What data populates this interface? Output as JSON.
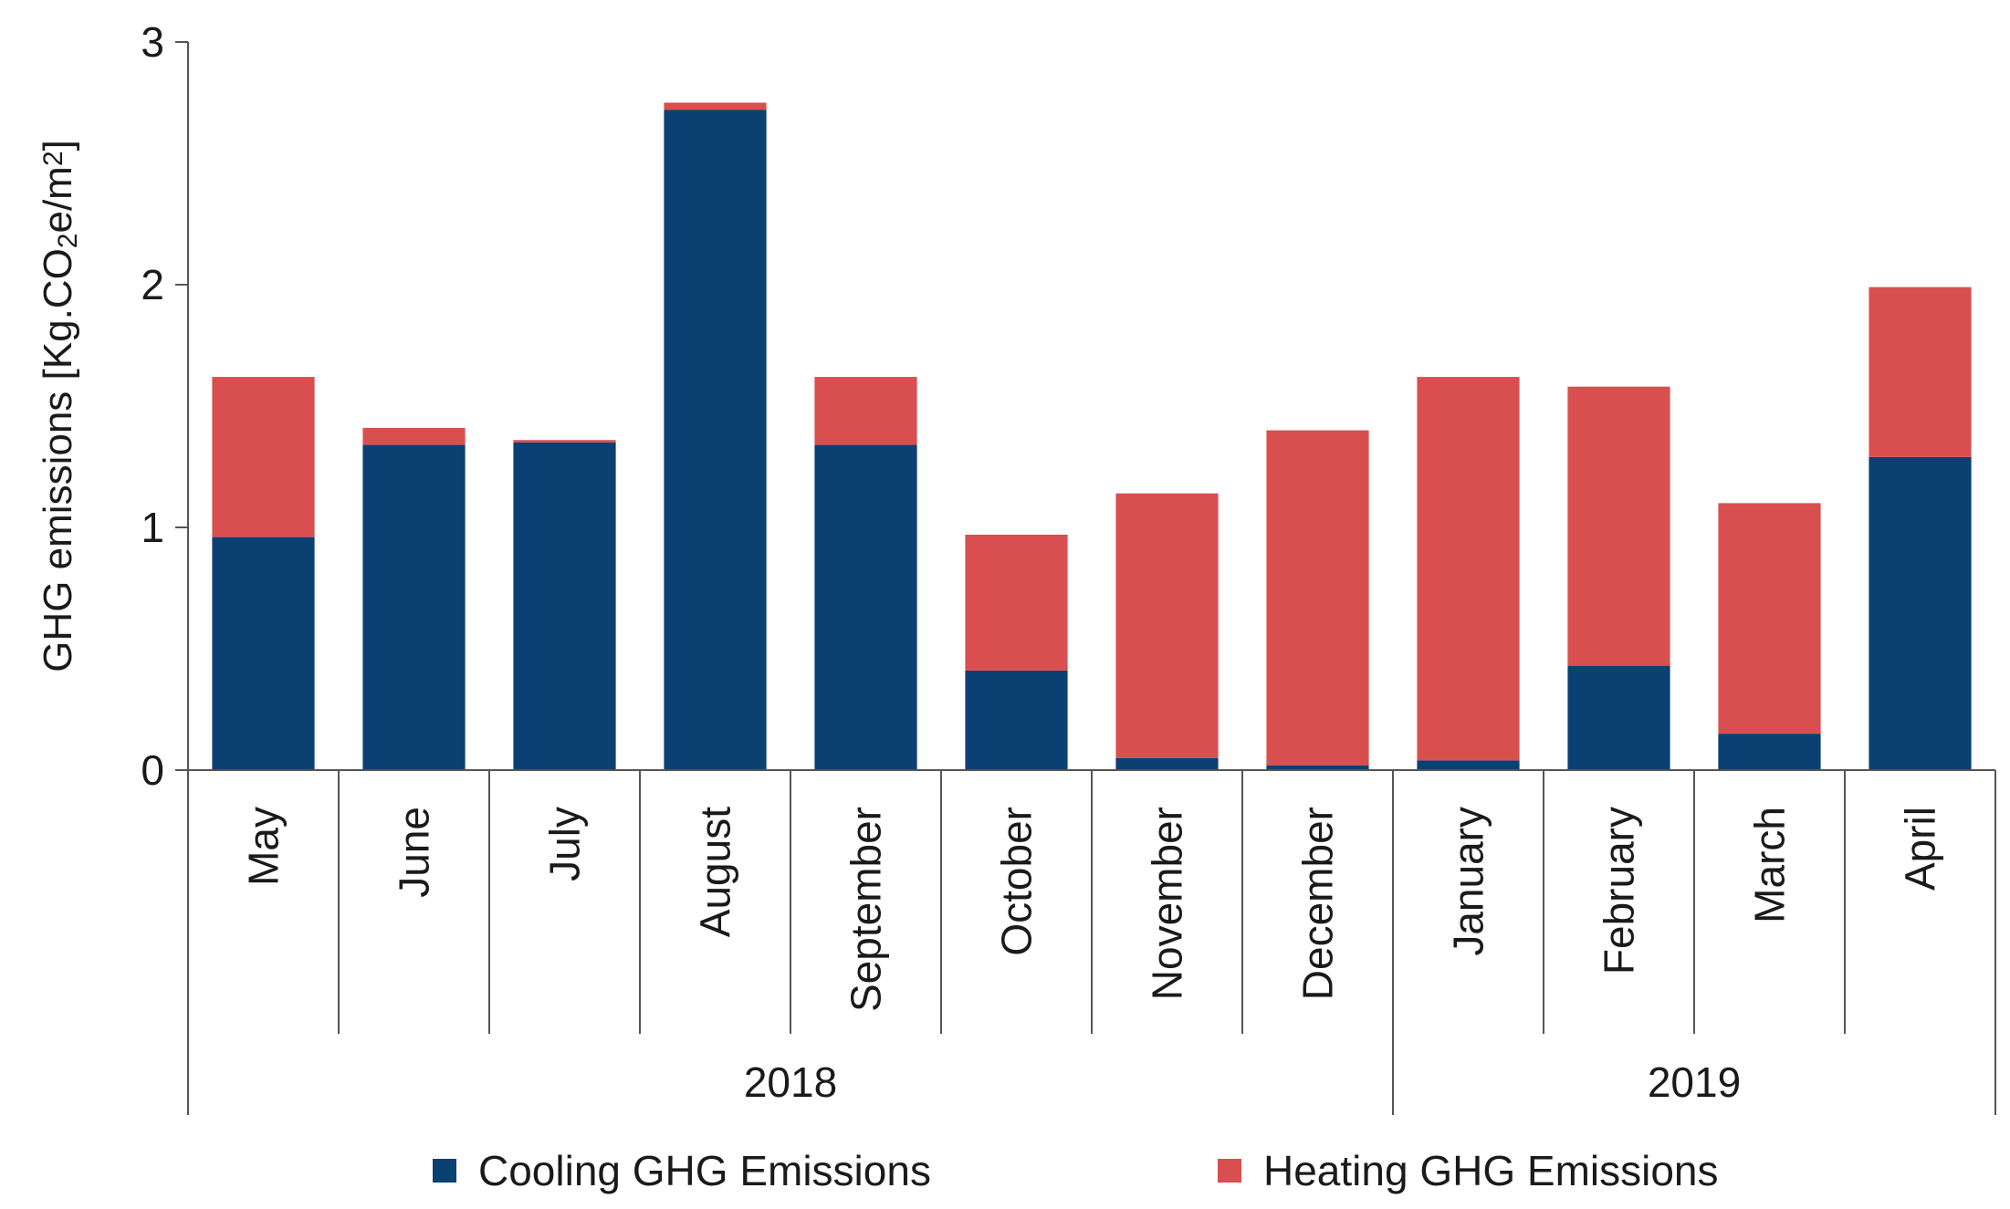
{
  "chart_data": {
    "type": "bar",
    "stacked": true,
    "categories": [
      "May",
      "June",
      "July",
      "August",
      "September",
      "October",
      "November",
      "December",
      "January",
      "February",
      "March",
      "April"
    ],
    "groups": [
      {
        "label": "2018",
        "categories": [
          "May",
          "June",
          "July",
          "August",
          "September",
          "October",
          "November",
          "December"
        ]
      },
      {
        "label": "2019",
        "categories": [
          "January",
          "February",
          "March",
          "April"
        ]
      }
    ],
    "series": [
      {
        "name": "Cooling GHG Emissions",
        "color": "#0b4073",
        "values": [
          0.96,
          1.34,
          1.35,
          2.72,
          1.34,
          0.41,
          0.05,
          0.02,
          0.04,
          0.43,
          0.15,
          1.29
        ]
      },
      {
        "name": "Heating GHG Emissions",
        "color": "#d94f4f",
        "values": [
          0.66,
          0.07,
          0.01,
          0.03,
          0.28,
          0.56,
          1.09,
          1.38,
          1.58,
          1.15,
          0.95,
          0.7
        ]
      }
    ],
    "ylabel": {
      "prefix": "GHG emissions [Kg.CO",
      "sub": "2",
      "middle": "e/m",
      "sup": "2",
      "suffix": "]"
    },
    "ylim": [
      0,
      3
    ],
    "yticks": [
      "0",
      "1",
      "2",
      "3"
    ],
    "legend_position": "bottom",
    "grid": false
  }
}
